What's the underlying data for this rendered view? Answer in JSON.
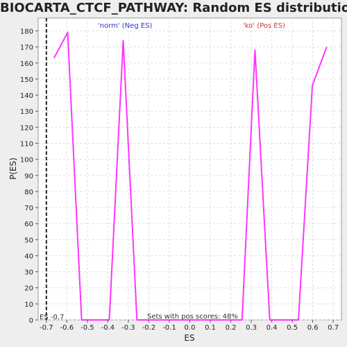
{
  "chart_data": {
    "type": "line",
    "title": "BIOCARTA_CTCF_PATHWAY: Random ES distribution",
    "xlabel": "ES",
    "ylabel": "P(ES)",
    "xlim": [
      -0.74,
      0.74
    ],
    "ylim": [
      0,
      188
    ],
    "x_ticks": [
      "-0.7",
      "-0.6",
      "-0.5",
      "-0.4",
      "-0.3",
      "-0.2",
      "-0.1",
      "0.0",
      "0.1",
      "0.2",
      "0.3",
      "0.4",
      "0.5",
      "0.6",
      "0.7"
    ],
    "y_ticks": [
      "0",
      "10",
      "20",
      "30",
      "40",
      "50",
      "60",
      "70",
      "80",
      "90",
      "100",
      "110",
      "120",
      "130",
      "140",
      "150",
      "160",
      "170",
      "180"
    ],
    "grid": true,
    "series": [
      {
        "color": "#ff33ff",
        "points": [
          [
            -0.663,
            163
          ],
          [
            -0.596,
            179
          ],
          [
            -0.528,
            0
          ],
          [
            -0.461,
            0
          ],
          [
            -0.393,
            0
          ],
          [
            -0.325,
            174
          ],
          [
            -0.258,
            0
          ],
          [
            -0.19,
            0
          ],
          [
            -0.123,
            0
          ],
          [
            -0.055,
            0
          ],
          [
            0.013,
            0
          ],
          [
            0.08,
            0
          ],
          [
            0.148,
            0
          ],
          [
            0.215,
            0
          ],
          [
            0.255,
            0
          ],
          [
            0.318,
            168
          ],
          [
            0.39,
            0
          ],
          [
            0.46,
            0
          ],
          [
            0.53,
            0
          ],
          [
            0.598,
            146
          ],
          [
            0.668,
            170
          ]
        ]
      }
    ],
    "marker_line": {
      "x": -0.7,
      "color": "#222222",
      "style": "dashed"
    },
    "annotations": {
      "neg_label": "'norm' (Neg ES)",
      "pos_label": "'ko' (Pos ES)",
      "es_label": "ES -0.7",
      "pos_scores": "Sets with pos scores: 48%"
    },
    "colors": {
      "neg": "#3333cc",
      "pos": "#cc3333",
      "line": "#ff33ff",
      "plot_bg": "#ffffff",
      "grid": "#dddddd"
    }
  }
}
